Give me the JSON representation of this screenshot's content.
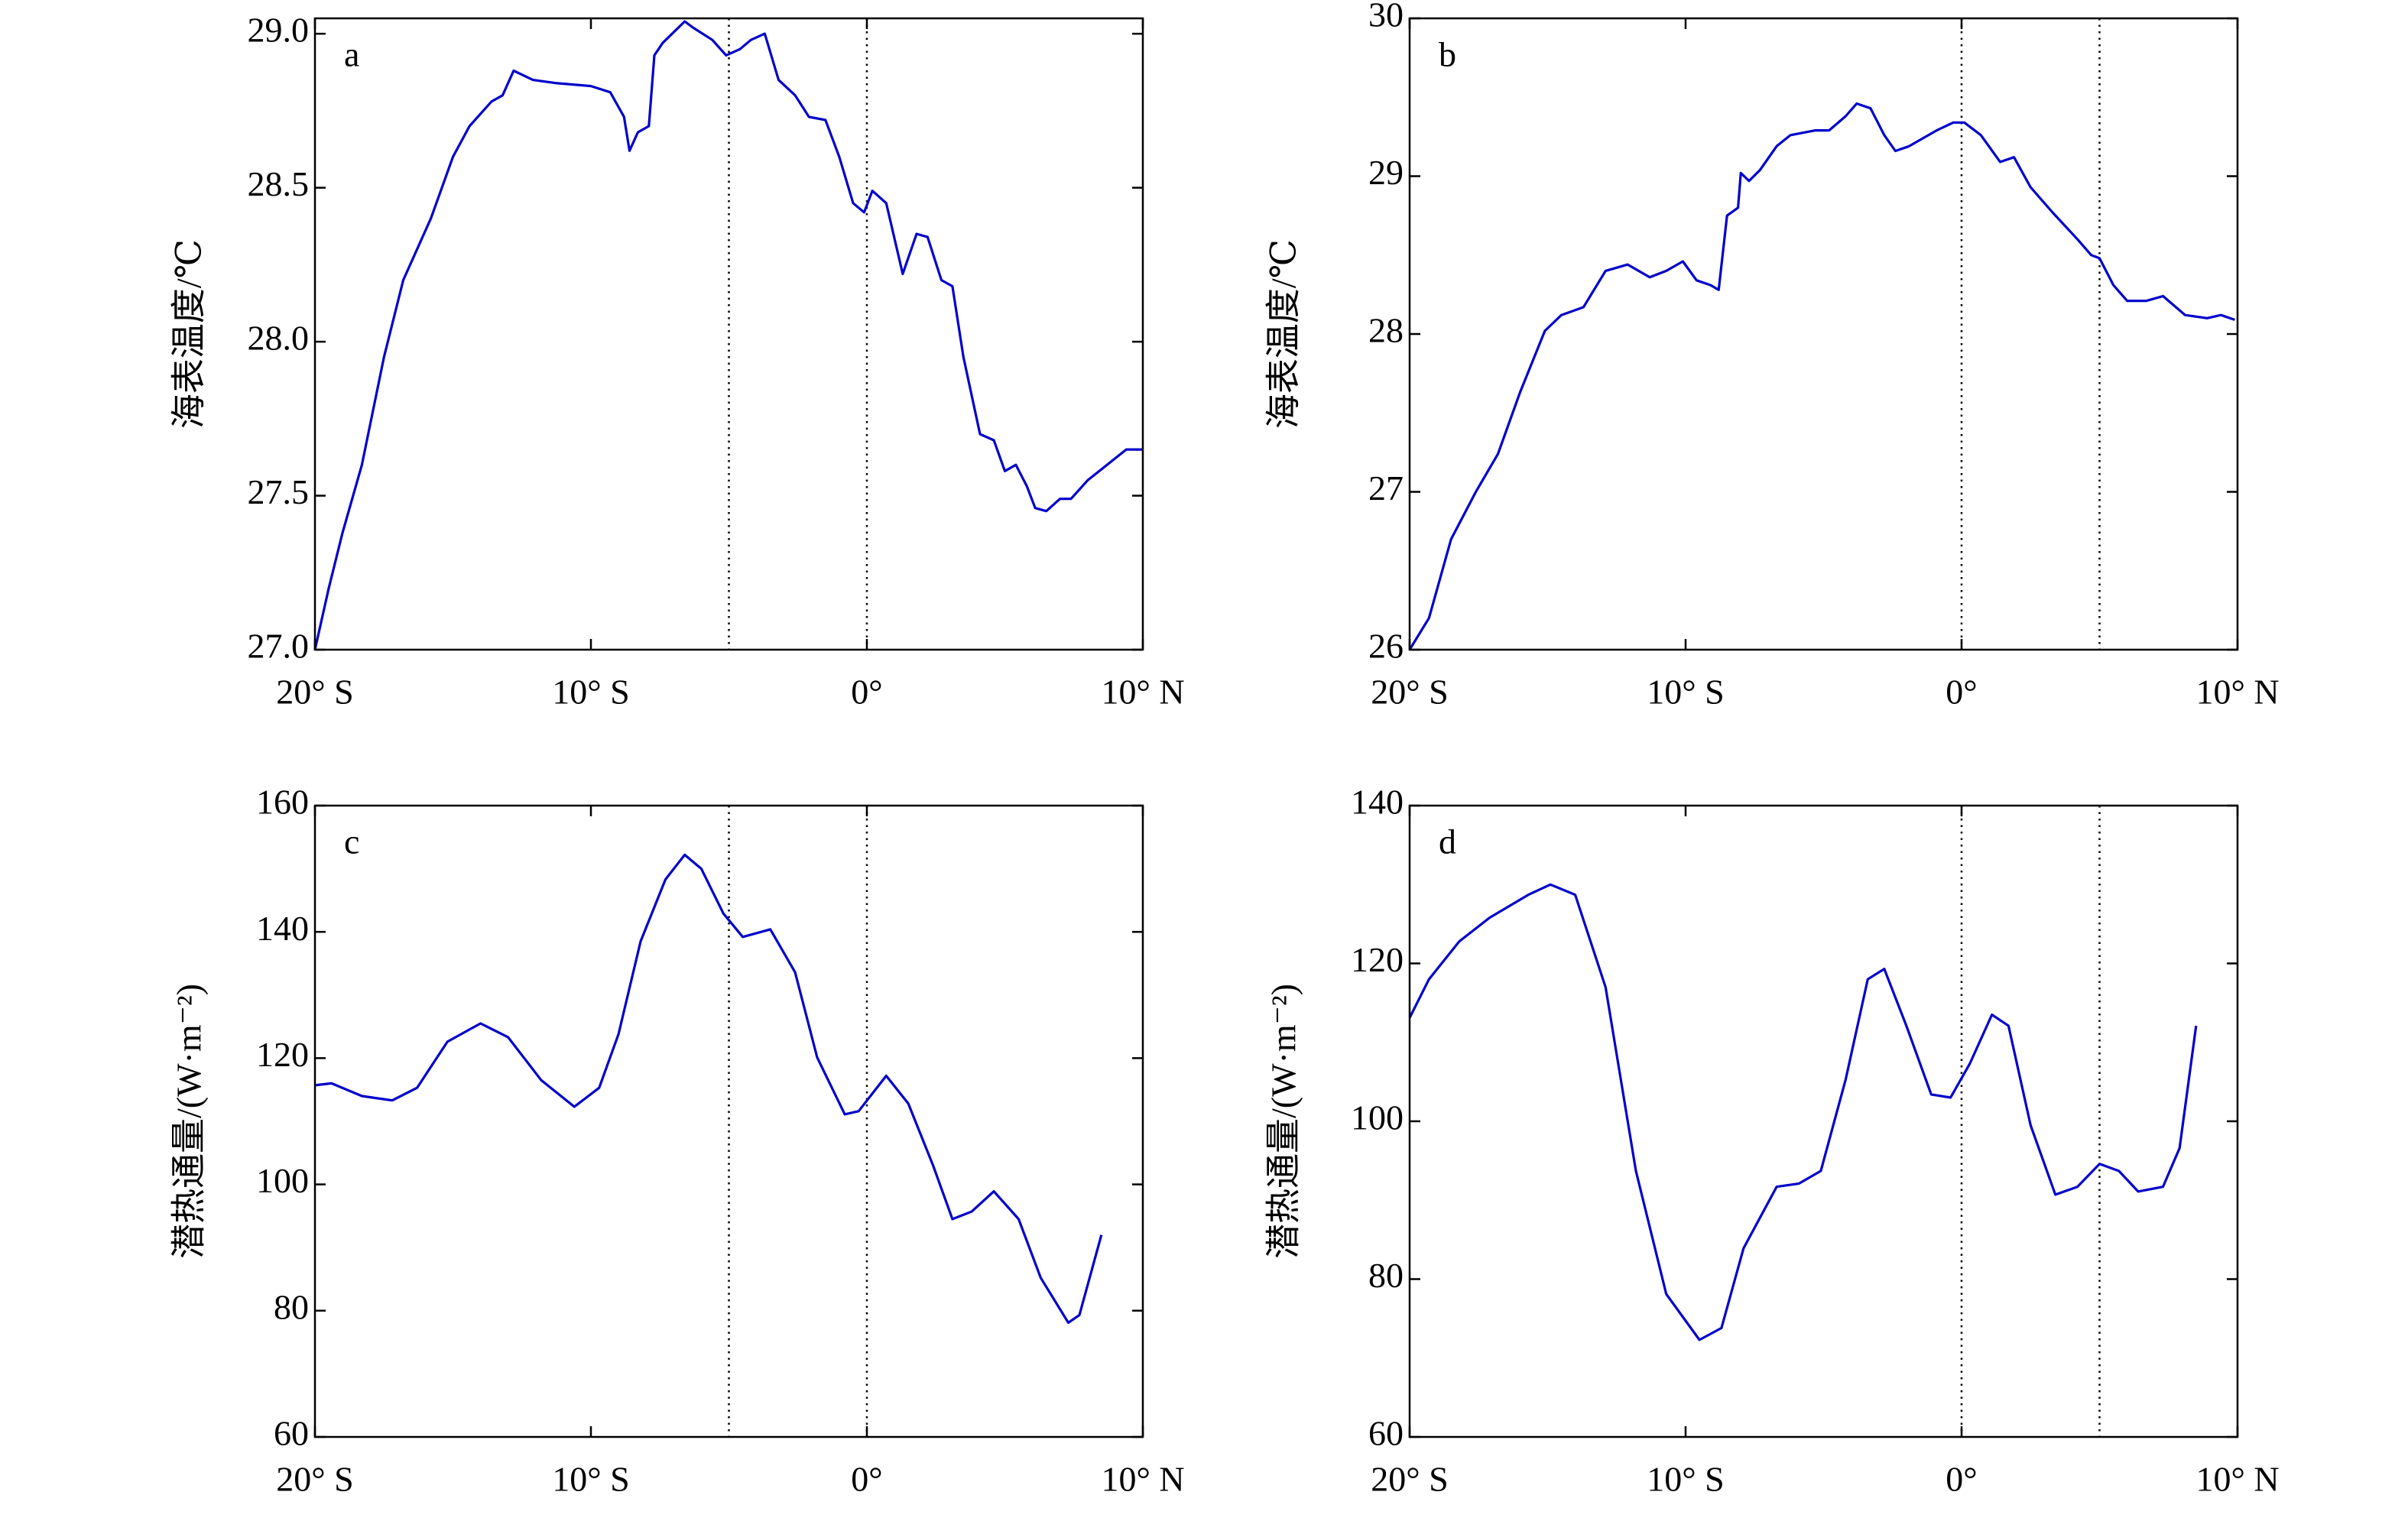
{
  "chart_data": [
    {
      "type": "line",
      "panel": "a",
      "ylabel": "海表温度/℃",
      "color": "#0000cc",
      "x": [
        -20,
        -19.5,
        -19,
        -18.3,
        -17.5,
        -16.8,
        -15.8,
        -15,
        -14.4,
        -13.6,
        -13.2,
        -12.8,
        -12.1,
        -11.3,
        -10,
        -9.3,
        -8.8,
        -8.6,
        -8.3,
        -7.9,
        -7.7,
        -7.4,
        -6.6,
        -6.3,
        -5.6,
        -5.1,
        -4.6,
        -4.2,
        -3.7,
        -3.2,
        -2.6,
        -2.1,
        -1.5,
        -1,
        -0.5,
        -0.1,
        0.2,
        0.7,
        1.3,
        1.8,
        2.2,
        2.7,
        3.1,
        3.5,
        4.1,
        4.6,
        5,
        5.4,
        5.8,
        6.1,
        6.5,
        7,
        7.4,
        8,
        8.7,
        9.4,
        10
      ],
      "values": [
        27.0,
        27.2,
        27.38,
        27.6,
        27.95,
        28.2,
        28.4,
        28.6,
        28.7,
        28.78,
        28.8,
        28.88,
        28.85,
        28.84,
        28.83,
        28.81,
        28.73,
        28.62,
        28.68,
        28.7,
        28.93,
        28.97,
        29.04,
        29.02,
        28.98,
        28.93,
        28.95,
        28.98,
        29.0,
        28.85,
        28.8,
        28.73,
        28.72,
        28.6,
        28.45,
        28.42,
        28.49,
        28.45,
        28.22,
        28.35,
        28.34,
        28.2,
        28.18,
        27.95,
        27.7,
        27.68,
        27.58,
        27.6,
        27.53,
        27.46,
        27.45,
        27.49,
        27.49,
        27.55,
        27.6,
        27.65,
        27.65
      ],
      "xlim": [
        -20,
        10
      ],
      "xticks": [
        {
          "value": -20,
          "label": "20° S"
        },
        {
          "value": -10,
          "label": "10° S"
        },
        {
          "value": 0,
          "label": "0°"
        },
        {
          "value": 10,
          "label": "10° N"
        }
      ],
      "ylim": [
        27.0,
        29.05
      ],
      "yticks": [
        {
          "value": 27,
          "label": "27.0"
        },
        27.5,
        {
          "value": 28,
          "label": "28.0"
        },
        28.5,
        {
          "value": 29,
          "label": "29.0"
        }
      ],
      "reference_lines": [
        -5,
        0
      ]
    },
    {
      "type": "line",
      "panel": "b",
      "ylabel": "海表温度/℃",
      "color": "#0000cc",
      "x": [
        -20,
        -19.3,
        -18.5,
        -17.6,
        -16.8,
        -16,
        -15.1,
        -14.5,
        -13.7,
        -12.9,
        -12.1,
        -11.3,
        -10.7,
        -10.1,
        -9.6,
        -9.1,
        -8.8,
        -8.5,
        -8.1,
        -8,
        -7.7,
        -7.3,
        -6.7,
        -6.2,
        -5.3,
        -4.8,
        -4.2,
        -3.8,
        -3.3,
        -2.8,
        -2.4,
        -1.9,
        -1.4,
        -0.9,
        -0.3,
        0.1,
        0.7,
        1.4,
        1.9,
        2.5,
        3.3,
        4.2,
        4.7,
        5,
        5.5,
        6,
        6.7,
        7.3,
        8.1,
        8.9,
        9.4,
        9.9
      ],
      "values": [
        26.0,
        26.2,
        26.7,
        27.0,
        27.24,
        27.63,
        28.02,
        28.12,
        28.17,
        28.4,
        28.44,
        28.36,
        28.4,
        28.46,
        28.34,
        28.31,
        28.28,
        28.75,
        28.8,
        29.02,
        28.97,
        29.04,
        29.19,
        29.26,
        29.29,
        29.29,
        29.38,
        29.46,
        29.43,
        29.26,
        29.16,
        29.19,
        29.24,
        29.29,
        29.34,
        29.34,
        29.26,
        29.09,
        29.12,
        28.93,
        28.77,
        28.6,
        28.5,
        28.48,
        28.31,
        28.21,
        28.21,
        28.24,
        28.12,
        28.1,
        28.12,
        28.09
      ],
      "xlim": [
        -20,
        10
      ],
      "xticks": [
        {
          "value": -20,
          "label": "20° S"
        },
        {
          "value": -10,
          "label": "10° S"
        },
        {
          "value": 0,
          "label": "0°"
        },
        {
          "value": 10,
          "label": "10° N"
        }
      ],
      "ylim": [
        26,
        30
      ],
      "yticks": [
        26,
        27,
        28,
        29,
        30
      ],
      "reference_lines": [
        0,
        5
      ]
    },
    {
      "type": "line",
      "panel": "c",
      "ylabel": "潜热通量/(W·m⁻²)",
      "color": "#0000cc",
      "x": [
        -20,
        -19.4,
        -18.3,
        -17.2,
        -16.3,
        -15.2,
        -14,
        -13,
        -11.8,
        -10.6,
        -9.7,
        -9,
        -8.2,
        -7.3,
        -6.6,
        -6,
        -5.2,
        -4.5,
        -3.5,
        -2.6,
        -1.8,
        -0.8,
        -0.3,
        0.7,
        1.5,
        2.4,
        3.1,
        3.8,
        4.6,
        5.5,
        6.3,
        7.3,
        7.7,
        8.5
      ],
      "values": [
        115.7,
        116,
        114,
        113.3,
        115.3,
        122.6,
        125.5,
        123.3,
        116.5,
        112.3,
        115.3,
        123.8,
        138.5,
        148.3,
        152.2,
        150,
        142.9,
        139.2,
        140.4,
        133.6,
        120.1,
        111.1,
        111.6,
        117.2,
        112.8,
        103,
        94.5,
        95.7,
        98.9,
        94.5,
        85.2,
        78.1,
        79.3,
        92
      ],
      "xlim": [
        -20,
        10
      ],
      "xticks": [
        {
          "value": -20,
          "label": "20° S"
        },
        {
          "value": -10,
          "label": "10° S"
        },
        {
          "value": 0,
          "label": "0°"
        },
        {
          "value": 10,
          "label": "10° N"
        }
      ],
      "ylim": [
        60,
        160
      ],
      "yticks": [
        60,
        80,
        100,
        120,
        140,
        160
      ],
      "reference_lines": [
        -5,
        0
      ]
    },
    {
      "type": "line",
      "panel": "d",
      "ylabel": "潜热通量/(W·m⁻²)",
      "color": "#0000cc",
      "x": [
        -20,
        -19.3,
        -18.2,
        -17.1,
        -15.7,
        -14.9,
        -14,
        -12.9,
        -11.8,
        -10.7,
        -9.5,
        -8.7,
        -7.9,
        -6.7,
        -5.9,
        -5.1,
        -4.2,
        -3.4,
        -2.8,
        -2,
        -1.1,
        -0.4,
        0.3,
        1.1,
        1.7,
        2.5,
        3.4,
        4.2,
        5,
        5.7,
        6.4,
        7.3,
        7.9,
        8.5
      ],
      "values": [
        113.1,
        118,
        122.8,
        125.8,
        128.7,
        130,
        128.7,
        117,
        93.7,
        78.1,
        72.3,
        73.8,
        83.9,
        91.7,
        92.1,
        93.7,
        105.3,
        118,
        119.3,
        112.1,
        103.4,
        103,
        107.3,
        113.5,
        112.1,
        99.5,
        90.7,
        91.7,
        94.6,
        93.7,
        91.1,
        91.7,
        96.6,
        112.1
      ],
      "xlim": [
        -20,
        10
      ],
      "xticks": [
        {
          "value": -20,
          "label": "20° S"
        },
        {
          "value": -10,
          "label": "10° S"
        },
        {
          "value": 0,
          "label": "0°"
        },
        {
          "value": 10,
          "label": "10° N"
        }
      ],
      "ylim": [
        60,
        140
      ],
      "yticks": [
        60,
        80,
        100,
        120,
        140
      ],
      "reference_lines": [
        0,
        5
      ]
    }
  ]
}
